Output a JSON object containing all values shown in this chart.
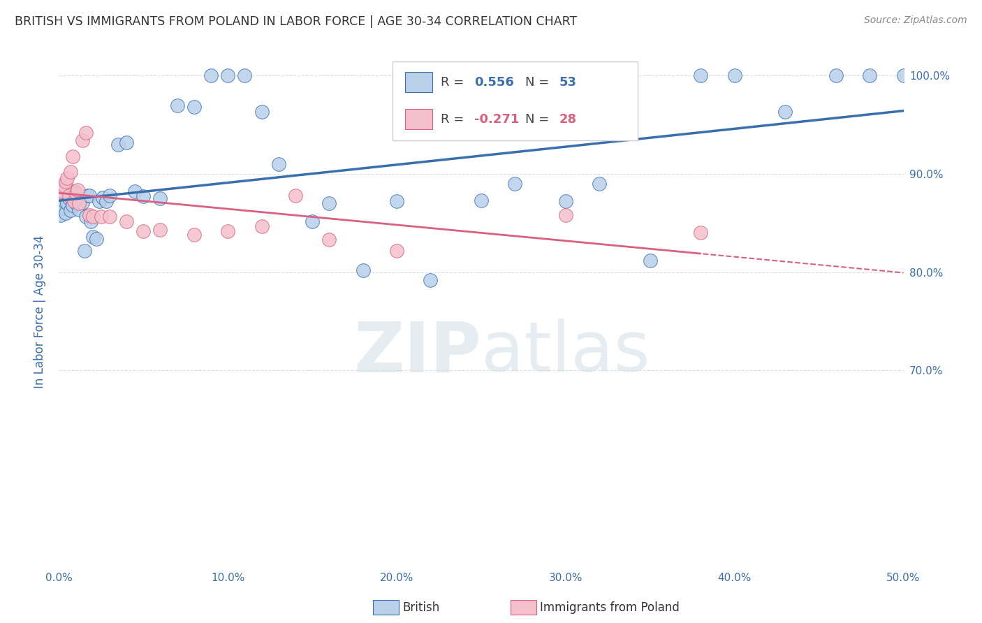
{
  "title": "BRITISH VS IMMIGRANTS FROM POLAND IN LABOR FORCE | AGE 30-34 CORRELATION CHART",
  "source": "Source: ZipAtlas.com",
  "ylabel": "In Labor Force | Age 30-34",
  "xmin": 0.0,
  "xmax": 0.5,
  "ymin": 0.5,
  "ymax": 1.02,
  "yticks": [
    0.7,
    0.8,
    0.9,
    1.0
  ],
  "ytick_labels": [
    "70.0%",
    "80.0%",
    "90.0%",
    "100.0%"
  ],
  "xticks": [
    0.0,
    0.1,
    0.2,
    0.3,
    0.4,
    0.5
  ],
  "xtick_labels": [
    "0.0%",
    "10.0%",
    "20.0%",
    "30.0%",
    "40.0%",
    "50.0%"
  ],
  "british_color": "#b8d0ea",
  "british_line_color": "#3a6fad",
  "poland_color": "#f4c0cc",
  "poland_line_color": "#d96080",
  "british_x": [
    0.001,
    0.002,
    0.003,
    0.004,
    0.005,
    0.006,
    0.007,
    0.008,
    0.009,
    0.01,
    0.011,
    0.012,
    0.013,
    0.014,
    0.015,
    0.016,
    0.017,
    0.018,
    0.019,
    0.02,
    0.022,
    0.024,
    0.026,
    0.028,
    0.03,
    0.035,
    0.04,
    0.045,
    0.05,
    0.06,
    0.07,
    0.08,
    0.09,
    0.1,
    0.11,
    0.12,
    0.13,
    0.15,
    0.16,
    0.18,
    0.2,
    0.22,
    0.25,
    0.27,
    0.3,
    0.32,
    0.35,
    0.38,
    0.4,
    0.43,
    0.46,
    0.48,
    0.5
  ],
  "british_y": [
    0.858,
    0.865,
    0.872,
    0.86,
    0.87,
    0.875,
    0.863,
    0.868,
    0.882,
    0.87,
    0.873,
    0.864,
    0.876,
    0.871,
    0.822,
    0.857,
    0.878,
    0.878,
    0.852,
    0.836,
    0.834,
    0.872,
    0.876,
    0.872,
    0.878,
    0.93,
    0.932,
    0.882,
    0.877,
    0.875,
    0.97,
    0.968,
    1.0,
    1.0,
    1.0,
    0.963,
    0.91,
    0.852,
    0.87,
    0.802,
    0.872,
    0.792,
    0.873,
    0.89,
    0.872,
    0.89,
    0.812,
    1.0,
    1.0,
    0.963,
    1.0,
    1.0,
    1.0
  ],
  "poland_x": [
    0.001,
    0.003,
    0.004,
    0.005,
    0.006,
    0.007,
    0.008,
    0.009,
    0.01,
    0.011,
    0.012,
    0.014,
    0.016,
    0.018,
    0.02,
    0.025,
    0.03,
    0.04,
    0.05,
    0.06,
    0.08,
    0.1,
    0.12,
    0.14,
    0.16,
    0.2,
    0.3,
    0.38
  ],
  "poland_y": [
    0.882,
    0.888,
    0.892,
    0.896,
    0.878,
    0.902,
    0.918,
    0.872,
    0.88,
    0.884,
    0.87,
    0.934,
    0.942,
    0.858,
    0.857,
    0.857,
    0.857,
    0.852,
    0.842,
    0.843,
    0.838,
    0.842,
    0.847,
    0.878,
    0.833,
    0.822,
    0.858,
    0.84
  ],
  "watermark_zip": "ZIP",
  "watermark_atlas": "atlas",
  "background_color": "#ffffff",
  "grid_color": "#dddddd",
  "title_color": "#333333",
  "tick_color": "#3a6fad",
  "source_color": "#888888"
}
